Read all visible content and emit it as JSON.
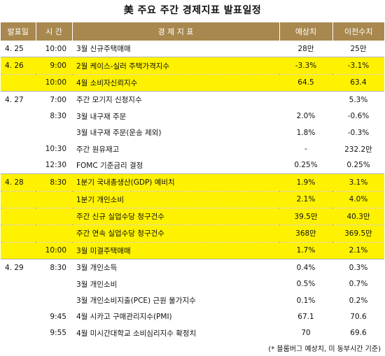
{
  "title": "美 주요 주간 경제지표 발표일정",
  "headers": {
    "date": "발표일",
    "time": "시 간",
    "indicator": "경 제 지 표",
    "forecast": "예상치",
    "previous": "이전수치"
  },
  "rows": [
    {
      "date": "4. 25",
      "time": "10:00",
      "indicator": "3월 신규주택매매",
      "forecast": "28만",
      "previous": "25만",
      "highlight": false
    },
    {
      "date": "4. 26",
      "time": "9:00",
      "indicator": "2월 케이스-실러 주택가격지수",
      "forecast": "-3.3%",
      "previous": "-3.1%",
      "highlight": true
    },
    {
      "date": "",
      "time": "10:00",
      "indicator": "4월 소비자신뢰지수",
      "forecast": "64.5",
      "previous": "63.4",
      "highlight": true
    },
    {
      "date": "4. 27",
      "time": "7:00",
      "indicator": "주간 모기지 신청지수",
      "forecast": "",
      "previous": "5.3%",
      "highlight": false
    },
    {
      "date": "",
      "time": "8:30",
      "indicator": "3월 내구재 주문",
      "forecast": "2.0%",
      "previous": "-0.6%",
      "highlight": false
    },
    {
      "date": "",
      "time": "",
      "indicator": "3월 내구재 주문(운송 제외)",
      "forecast": "1.8%",
      "previous": "-0.3%",
      "highlight": false
    },
    {
      "date": "",
      "time": "10:30",
      "indicator": "주간 원유재고",
      "forecast": "-",
      "previous": "232.2만",
      "highlight": false
    },
    {
      "date": "",
      "time": "12:30",
      "indicator": "FOMC 기준금리 결정",
      "forecast": "0.25%",
      "previous": "0.25%",
      "highlight": false
    },
    {
      "date": "4. 28",
      "time": "8:30",
      "indicator": "1분기 국내총생산(GDP) 예비치",
      "forecast": "1.9%",
      "previous": "3.1%",
      "highlight": true
    },
    {
      "date": "",
      "time": "",
      "indicator": "1분기 개인소비",
      "forecast": "2.1%",
      "previous": "4.0%",
      "highlight": true
    },
    {
      "date": "",
      "time": "",
      "indicator": "주간 신규 실업수당 청구건수",
      "forecast": "39.5만",
      "previous": "40.3만",
      "highlight": true
    },
    {
      "date": "",
      "time": "",
      "indicator": "주간 연속 실업수당 청구건수",
      "forecast": "368만",
      "previous": "369.5만",
      "highlight": true
    },
    {
      "date": "",
      "time": "10:00",
      "indicator": "3월 미결주택매매",
      "forecast": "1.7%",
      "previous": "2.1%",
      "highlight": true
    },
    {
      "date": "4. 29",
      "time": "8:30",
      "indicator": "3월 개인소득",
      "forecast": "0.4%",
      "previous": "0.3%",
      "highlight": false
    },
    {
      "date": "",
      "time": "",
      "indicator": "3월 개인소비",
      "forecast": "0.5%",
      "previous": "0.7%",
      "highlight": false
    },
    {
      "date": "",
      "time": "",
      "indicator": "3월 개인소비지출(PCE) 근원 물가지수",
      "forecast": "0.1%",
      "previous": "0.2%",
      "highlight": false
    },
    {
      "date": "",
      "time": "9:45",
      "indicator": "4월 시카고 구매관리지수(PMI)",
      "forecast": "67.1",
      "previous": "70.6",
      "highlight": false
    },
    {
      "date": "",
      "time": "9:55",
      "indicator": "4월 미시간대학교 소비심리지수 확정치",
      "forecast": "70",
      "previous": "69.6",
      "highlight": false
    }
  ],
  "footnote": "(* 블룸버그 예상치, 미 동부시간 기준)"
}
